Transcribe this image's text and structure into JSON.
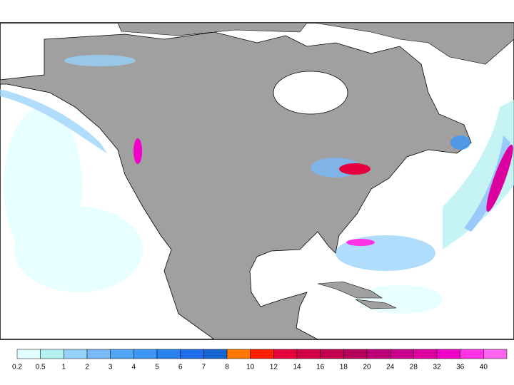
{
  "legend": {
    "labels": [
      "0.2",
      "0.5",
      "1",
      "2",
      "3",
      "4",
      "5",
      "6",
      "7",
      "8",
      "10",
      "12",
      "14",
      "16",
      "18",
      "20",
      "24",
      "28",
      "32",
      "36",
      "40"
    ],
    "colors": [
      "#e0ffff",
      "#b4f0f0",
      "#96d2fa",
      "#78b9fa",
      "#50a5f5",
      "#3c97f5",
      "#2883f0",
      "#1e6eeb",
      "#1464d2",
      "#ff7800",
      "#ff1e00",
      "#e6003c",
      "#d20046",
      "#c30050",
      "#b4005a",
      "#be0078",
      "#c8008c",
      "#dc00a0",
      "#f000c8",
      "#ff32e6",
      "#ff64f0"
    ]
  }
}
